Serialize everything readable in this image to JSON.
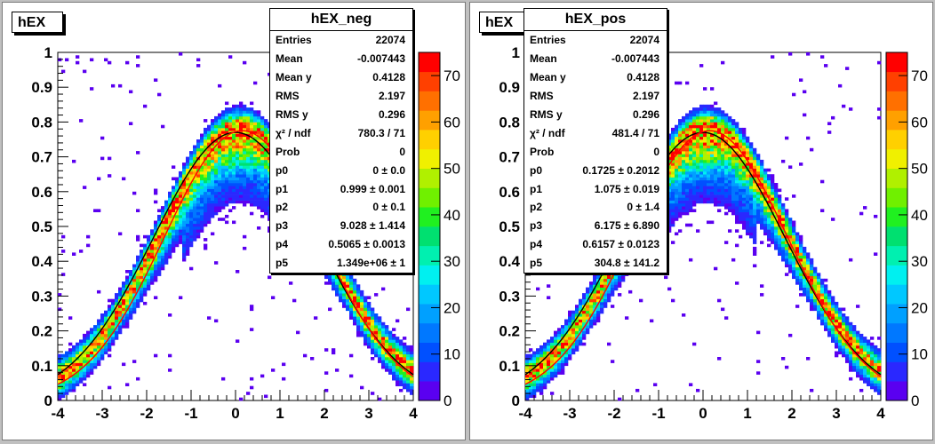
{
  "pads": [
    {
      "title": "hEX",
      "stats": {
        "name": "hEX_neg",
        "rows": [
          {
            "label": "Entries",
            "value": "22074"
          },
          {
            "label": "Mean",
            "value": "-0.007443"
          },
          {
            "label": "Mean y",
            "value": "0.4128"
          },
          {
            "label": "RMS",
            "value": "2.197"
          },
          {
            "label": "RMS y",
            "value": "0.296"
          },
          {
            "label": "χ² / ndf",
            "value": "780.3 / 71"
          },
          {
            "label": "Prob",
            "value": "0"
          },
          {
            "label": "p0",
            "value": "0 ± 0.0"
          },
          {
            "label": "p1",
            "value": "0.999 ± 0.001"
          },
          {
            "label": "p2",
            "value": "0 ± 0.1"
          },
          {
            "label": "p3",
            "value": "9.028 ± 1.414"
          },
          {
            "label": "p4",
            "value": "0.5065 ± 0.0013"
          },
          {
            "label": "p5",
            "value": "1.349e+06 ± 1"
          }
        ]
      }
    },
    {
      "title": "hEX",
      "stats": {
        "name": "hEX_pos",
        "rows": [
          {
            "label": "Entries",
            "value": "22074"
          },
          {
            "label": "Mean",
            "value": "-0.007443"
          },
          {
            "label": "Mean y",
            "value": "0.4128"
          },
          {
            "label": "RMS",
            "value": "2.197"
          },
          {
            "label": "RMS y",
            "value": "0.296"
          },
          {
            "label": "χ² / ndf",
            "value": "481.4 / 71"
          },
          {
            "label": "Prob",
            "value": "0"
          },
          {
            "label": "p0",
            "value": "0.1725 ± 0.2012"
          },
          {
            "label": "p1",
            "value": "1.075 ± 0.019"
          },
          {
            "label": "p2",
            "value": "0 ± 1.4"
          },
          {
            "label": "p3",
            "value": "6.175 ± 6.890"
          },
          {
            "label": "p4",
            "value": "0.6157 ± 0.0123"
          },
          {
            "label": "p5",
            "value": "304.8 ± 141.2"
          }
        ]
      }
    }
  ],
  "chart_data": [
    {
      "type": "heatmap",
      "title": "hEX",
      "xlim": [
        -4,
        4
      ],
      "ylim": [
        0,
        1
      ],
      "x_ticks": [
        "-4",
        "-3",
        "-2",
        "-1",
        "0",
        "1",
        "2",
        "3",
        "4"
      ],
      "y_ticks": [
        "0",
        "0.1",
        "0.2",
        "0.3",
        "0.4",
        "0.5",
        "0.6",
        "0.7",
        "0.8",
        "0.9",
        "1"
      ],
      "z_range": [
        0,
        75
      ],
      "z_ticks": [
        "0",
        "10",
        "20",
        "30",
        "40",
        "50",
        "60",
        "70"
      ],
      "ridge": {
        "peak": 0.78,
        "center": 0.1,
        "sigma": 1.8,
        "offset": 0.01
      },
      "fit_curves": [
        {
          "color": "#000000",
          "peak": 0.77,
          "center": 0.0,
          "sigma": 1.85
        },
        {
          "color": "#ff0000",
          "peak": 0.775,
          "center": 0.15,
          "sigma": 1.75
        }
      ]
    },
    {
      "type": "heatmap",
      "title": "hEX",
      "xlim": [
        -4,
        4
      ],
      "ylim": [
        0,
        1
      ],
      "x_ticks": [
        "-4",
        "-3",
        "-2",
        "-1",
        "0",
        "1",
        "2",
        "3",
        "4"
      ],
      "y_ticks": [
        "0",
        "0.1",
        "0.2",
        "0.3",
        "0.4",
        "0.5",
        "0.6",
        "0.7",
        "0.8",
        "0.9",
        "1"
      ],
      "z_range": [
        0,
        75
      ],
      "z_ticks": [
        "0",
        "10",
        "20",
        "30",
        "40",
        "50",
        "60",
        "70"
      ],
      "ridge": {
        "peak": 0.78,
        "center": 0.1,
        "sigma": 1.8,
        "offset": 0.01
      },
      "fit_curves": [
        {
          "color": "#000000",
          "peak": 0.77,
          "center": 0.0,
          "sigma": 1.85
        },
        {
          "color": "#ff0000",
          "peak": 0.775,
          "center": 0.15,
          "sigma": 1.75
        }
      ]
    }
  ],
  "palette": [
    "#5a00f0",
    "#2a28ff",
    "#0050ff",
    "#0078ff",
    "#00a0ff",
    "#00c8ff",
    "#00f0f0",
    "#00f0b0",
    "#00e070",
    "#20f020",
    "#70f000",
    "#b0f000",
    "#f0f000",
    "#ffd000",
    "#ffa000",
    "#ff7000",
    "#ff4000",
    "#ff0000"
  ]
}
